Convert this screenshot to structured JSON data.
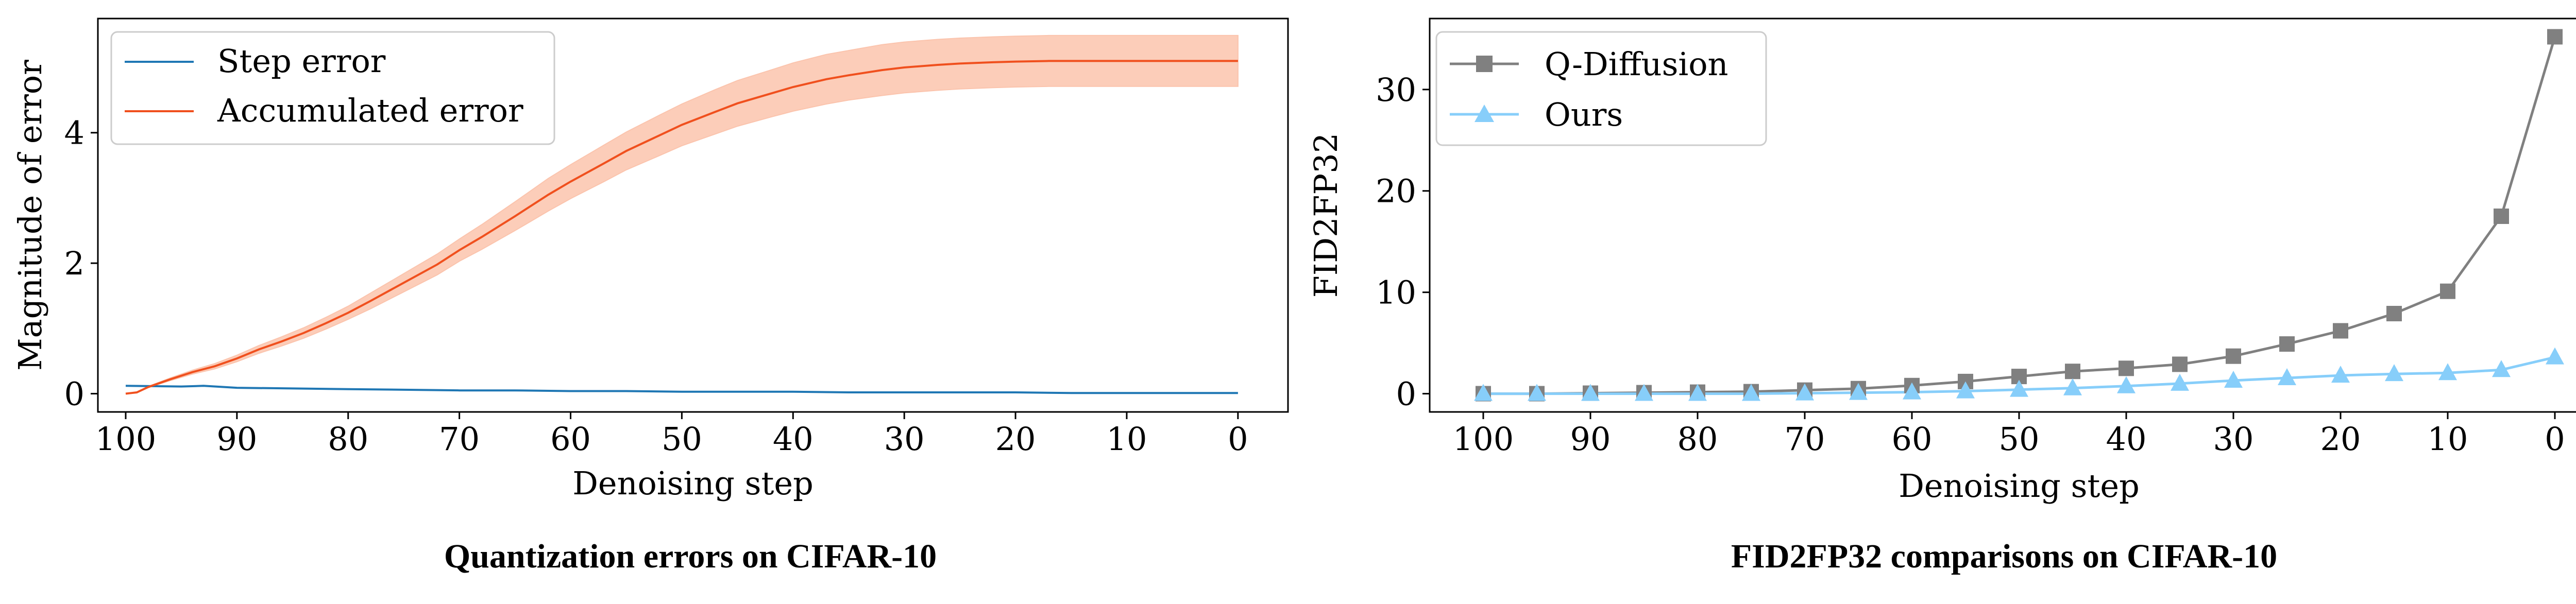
{
  "colors": {
    "step_error": "#1f77b4",
    "accumulated_error": "#f0501e",
    "accumulated_band": "#fbc4ad",
    "q_diffusion": "#808080",
    "ours": "#87cefa"
  },
  "captions": {
    "left": "Quantization errors on CIFAR-10",
    "right": "FID2FP32 comparisons on CIFAR-10"
  },
  "chart_data": [
    {
      "type": "line",
      "xlabel": "Denoising step",
      "ylabel": "Magnitude of error",
      "xlim": [
        102.5,
        -4.5
      ],
      "ylim": [
        -0.28,
        5.75
      ],
      "x_inverted": true,
      "grid": false,
      "legend_position": "top-left",
      "x_ticks": [
        100,
        90,
        80,
        70,
        60,
        50,
        40,
        30,
        20,
        10,
        0
      ],
      "x_tick_labels": [
        "100",
        "90",
        "80",
        "70",
        "60",
        "50",
        "40",
        "30",
        "20",
        "10",
        "0"
      ],
      "y_ticks": [
        0,
        2,
        4
      ],
      "y_tick_labels": [
        "0",
        "2",
        "4"
      ],
      "series": [
        {
          "name": "Step error",
          "color_key": "step_error",
          "x": [
            100,
            95,
            93,
            90,
            85,
            80,
            75,
            70,
            65,
            60,
            55,
            50,
            45,
            40,
            35,
            30,
            25,
            20,
            15,
            10,
            5,
            0
          ],
          "y": [
            0.12,
            0.11,
            0.12,
            0.09,
            0.08,
            0.07,
            0.06,
            0.05,
            0.05,
            0.04,
            0.04,
            0.03,
            0.03,
            0.03,
            0.02,
            0.02,
            0.02,
            0.02,
            0.01,
            0.01,
            0.01,
            0.01
          ]
        },
        {
          "name": "Accumulated error",
          "color_key": "accumulated_error",
          "x": [
            100,
            99,
            98,
            96,
            94,
            92,
            90,
            88,
            86,
            84,
            82,
            80,
            78,
            75,
            72,
            70,
            68,
            65,
            62,
            60,
            57,
            55,
            52,
            50,
            47,
            45,
            42,
            40,
            37,
            35,
            32,
            30,
            27,
            25,
            22,
            20,
            17,
            15,
            12,
            10,
            7,
            5,
            2,
            0
          ],
          "y": [
            0.0,
            0.02,
            0.1,
            0.22,
            0.33,
            0.42,
            0.54,
            0.68,
            0.8,
            0.93,
            1.08,
            1.24,
            1.42,
            1.7,
            1.98,
            2.2,
            2.4,
            2.72,
            3.05,
            3.25,
            3.53,
            3.72,
            3.96,
            4.12,
            4.32,
            4.45,
            4.6,
            4.7,
            4.82,
            4.88,
            4.96,
            5.0,
            5.04,
            5.06,
            5.08,
            5.09,
            5.1,
            5.1,
            5.1,
            5.1,
            5.1,
            5.1,
            5.1,
            5.1
          ],
          "band_lower": [
            0.0,
            0.02,
            0.09,
            0.2,
            0.3,
            0.38,
            0.49,
            0.62,
            0.73,
            0.85,
            0.99,
            1.14,
            1.3,
            1.56,
            1.82,
            2.03,
            2.21,
            2.5,
            2.8,
            2.99,
            3.25,
            3.43,
            3.65,
            3.8,
            3.98,
            4.1,
            4.24,
            4.33,
            4.44,
            4.5,
            4.57,
            4.61,
            4.65,
            4.67,
            4.69,
            4.7,
            4.71,
            4.71,
            4.71,
            4.71,
            4.71,
            4.71,
            4.71,
            4.71
          ],
          "band_upper": [
            0.0,
            0.02,
            0.11,
            0.24,
            0.36,
            0.46,
            0.59,
            0.74,
            0.87,
            1.01,
            1.17,
            1.34,
            1.54,
            1.84,
            2.14,
            2.37,
            2.59,
            2.94,
            3.3,
            3.51,
            3.81,
            4.01,
            4.27,
            4.44,
            4.66,
            4.8,
            4.96,
            5.07,
            5.2,
            5.26,
            5.35,
            5.39,
            5.43,
            5.45,
            5.47,
            5.48,
            5.49,
            5.49,
            5.49,
            5.49,
            5.49,
            5.49,
            5.49,
            5.49
          ]
        }
      ]
    },
    {
      "type": "line",
      "xlabel": "Denoising step",
      "ylabel": "FID2FP32",
      "xlim": [
        105,
        -5
      ],
      "ylim": [
        -1.8,
        37.0
      ],
      "x_inverted": true,
      "grid": false,
      "legend_position": "top-left",
      "x_ticks": [
        100,
        90,
        80,
        70,
        60,
        50,
        40,
        30,
        20,
        10,
        0
      ],
      "x_tick_labels": [
        "100",
        "90",
        "80",
        "70",
        "60",
        "50",
        "40",
        "30",
        "20",
        "10",
        "0"
      ],
      "y_ticks": [
        0,
        10,
        20,
        30
      ],
      "y_tick_labels": [
        "0",
        "10",
        "20",
        "30"
      ],
      "series": [
        {
          "name": "Q-Diffusion",
          "color_key": "q_diffusion",
          "marker": "square",
          "x": [
            100,
            95,
            90,
            85,
            80,
            75,
            70,
            65,
            60,
            55,
            50,
            45,
            40,
            35,
            30,
            25,
            20,
            15,
            10,
            5,
            0
          ],
          "y": [
            0.0,
            0.0,
            0.05,
            0.1,
            0.15,
            0.2,
            0.35,
            0.5,
            0.8,
            1.2,
            1.7,
            2.2,
            2.5,
            2.9,
            3.7,
            4.9,
            6.2,
            7.9,
            10.1,
            17.5,
            35.2
          ]
        },
        {
          "name": "Ours",
          "color_key": "ours",
          "marker": "triangle",
          "x": [
            100,
            95,
            90,
            85,
            80,
            75,
            70,
            65,
            60,
            55,
            50,
            45,
            40,
            35,
            30,
            25,
            20,
            15,
            10,
            5,
            0
          ],
          "y": [
            0.0,
            0.0,
            0.0,
            0.0,
            0.0,
            0.0,
            0.05,
            0.1,
            0.15,
            0.25,
            0.4,
            0.55,
            0.75,
            1.0,
            1.3,
            1.55,
            1.8,
            1.95,
            2.05,
            2.35,
            3.6
          ]
        }
      ]
    }
  ]
}
